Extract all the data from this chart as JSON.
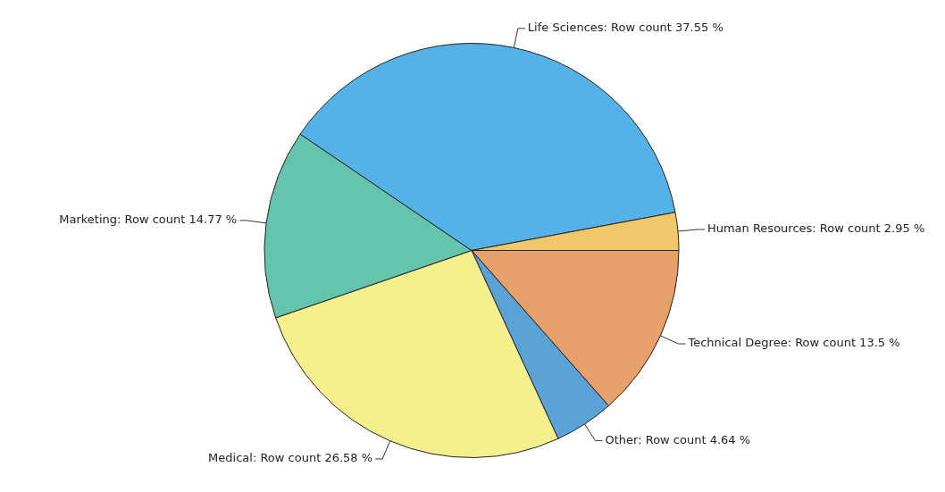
{
  "chart_data": {
    "type": "pie",
    "categories": [
      "Technical Degree",
      "Other",
      "Medical",
      "Marketing",
      "Life Sciences",
      "Human Resources"
    ],
    "values": [
      13.5,
      4.64,
      26.58,
      14.77,
      37.55,
      2.95
    ],
    "colors": [
      "#e8a06a",
      "#5ba3d6",
      "#f5ef8e",
      "#64c4ad",
      "#55b2e6",
      "#f0c86a"
    ],
    "value_labels": [
      "Row count 13.5 %",
      "Row count 4.64 %",
      "Row count 26.58 %",
      "Row count 14.77 %",
      "Row count 37.55 %",
      "Row count 2.95 %"
    ],
    "legend": false
  }
}
